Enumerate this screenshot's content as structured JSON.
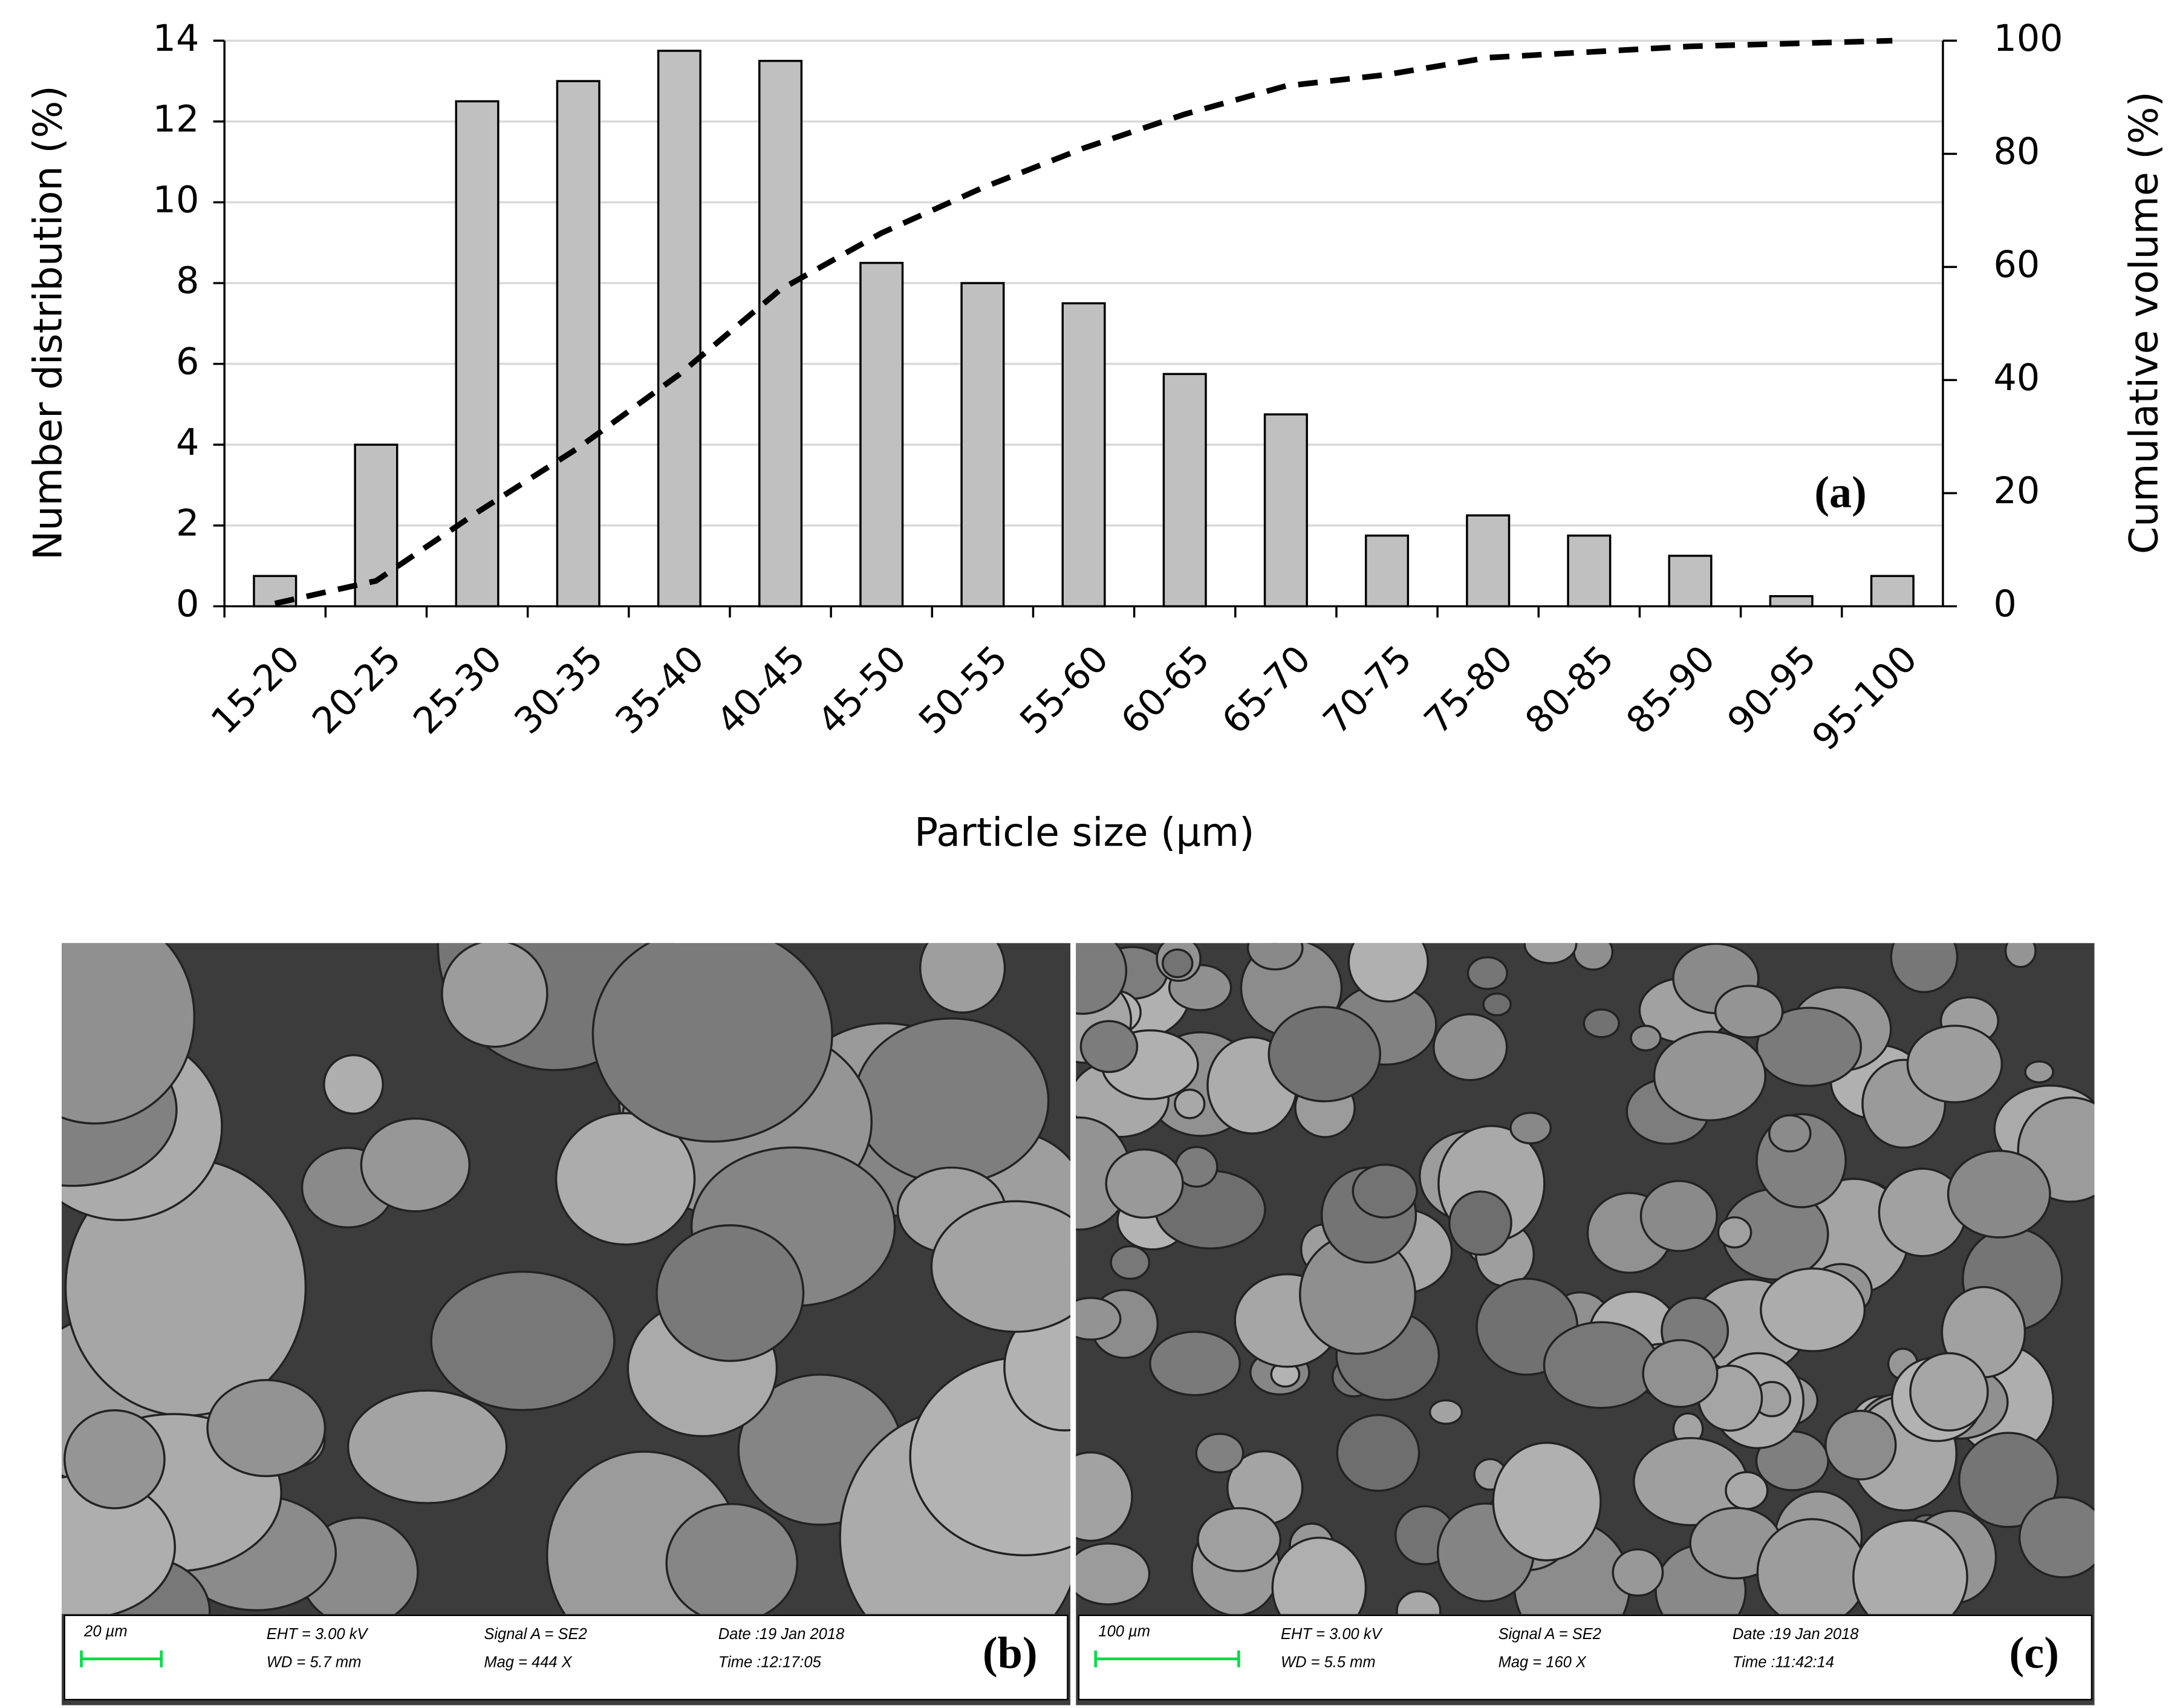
{
  "chart_data": {
    "type": "bar",
    "categories": [
      "15-20",
      "20-25",
      "25-30",
      "30-35",
      "35-40",
      "40-45",
      "45-50",
      "50-55",
      "55-60",
      "60-65",
      "65-70",
      "70-75",
      "75-80",
      "80-85",
      "85-90",
      "90-95",
      "95-100"
    ],
    "series": [
      {
        "type": "bar",
        "color": "#c0c0c0",
        "values": [
          0.75,
          4,
          12.5,
          13,
          13.75,
          13.5,
          8.5,
          8,
          7.5,
          5.75,
          4.75,
          1.75,
          2.25,
          1.75,
          1.25,
          0.25,
          0.75
        ]
      },
      {
        "type": "line",
        "color": "#000000",
        "axis": "y2",
        "values": [
          0.5,
          4.5,
          16.6,
          28,
          41,
          56,
          66,
          74,
          81,
          87,
          92,
          94,
          97,
          98,
          99,
          99.5,
          100
        ]
      }
    ],
    "ylim": [
      0,
      14
    ],
    "yticks": [
      0,
      2,
      4,
      6,
      8,
      10,
      12,
      14
    ],
    "y2lim": [
      0,
      100
    ],
    "y2ticks": [
      0,
      20,
      40,
      60,
      80,
      100
    ],
    "y_label": "Number distribution (%)",
    "y2_label": "Cumulative volume (%)",
    "x_label": "Particle size (μm)",
    "annotation": "(a)",
    "grid": true
  },
  "panels": [
    {
      "scale": "20 µm",
      "eht": "EHT =  3.00 kV",
      "wd": "WD =  5.7 mm",
      "signal": "Signal A = SE2",
      "mag": "Mag =   444 X",
      "date": "Date :19 Jan 2018",
      "time": "Time :12:17:05",
      "tag": "(b)"
    },
    {
      "scale": "100 µm",
      "eht": "EHT =  3.00 kV",
      "wd": "WD =  5.5 mm",
      "signal": "Signal A = SE2",
      "mag": "Mag =   160 X",
      "date": "Date :19 Jan 2018",
      "time": "Time :11:42:14",
      "tag": "(c)"
    }
  ]
}
